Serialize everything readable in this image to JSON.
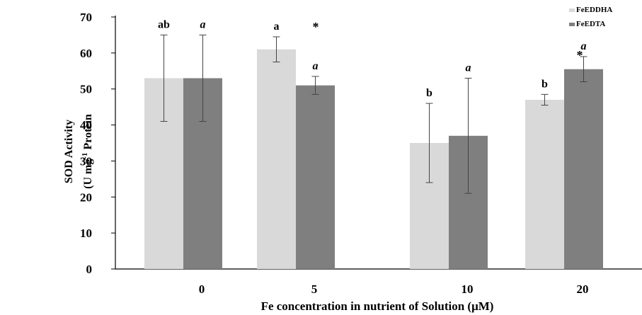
{
  "chart_data": {
    "type": "bar",
    "title": "",
    "xlabel": "Fe concentration in nutrient of Solution (μM)",
    "ylabel_line1": "SOD Activity",
    "ylabel_line2_prefix": "(U mg",
    "ylabel_line2_sup": "-1",
    "ylabel_line2_suffix": " Protein",
    "categories": [
      "0",
      "5",
      "10",
      "20"
    ],
    "ylim": [
      0,
      70
    ],
    "yticks": [
      0,
      10,
      20,
      30,
      40,
      50,
      60,
      70
    ],
    "grid": false,
    "legend_position": "top-right",
    "series": [
      {
        "name": "FeEDDHA",
        "color": "#d9d9d9",
        "values": [
          53,
          61,
          35,
          47
        ],
        "errors": [
          12,
          3.5,
          11,
          1.5
        ],
        "letters": [
          "ab",
          "a",
          "b",
          "b"
        ],
        "italic_letters": false
      },
      {
        "name": "FeEDTA",
        "color": "#7f7f7f",
        "values": [
          53,
          51,
          37,
          55.5
        ],
        "errors": [
          12,
          2.5,
          16,
          3.5
        ],
        "letters": [
          "a",
          "a",
          "a",
          "a"
        ],
        "italic_letters": true
      }
    ],
    "significance_markers": [
      {
        "category": "5",
        "label": "*"
      },
      {
        "category": "20",
        "label": "*"
      }
    ]
  }
}
